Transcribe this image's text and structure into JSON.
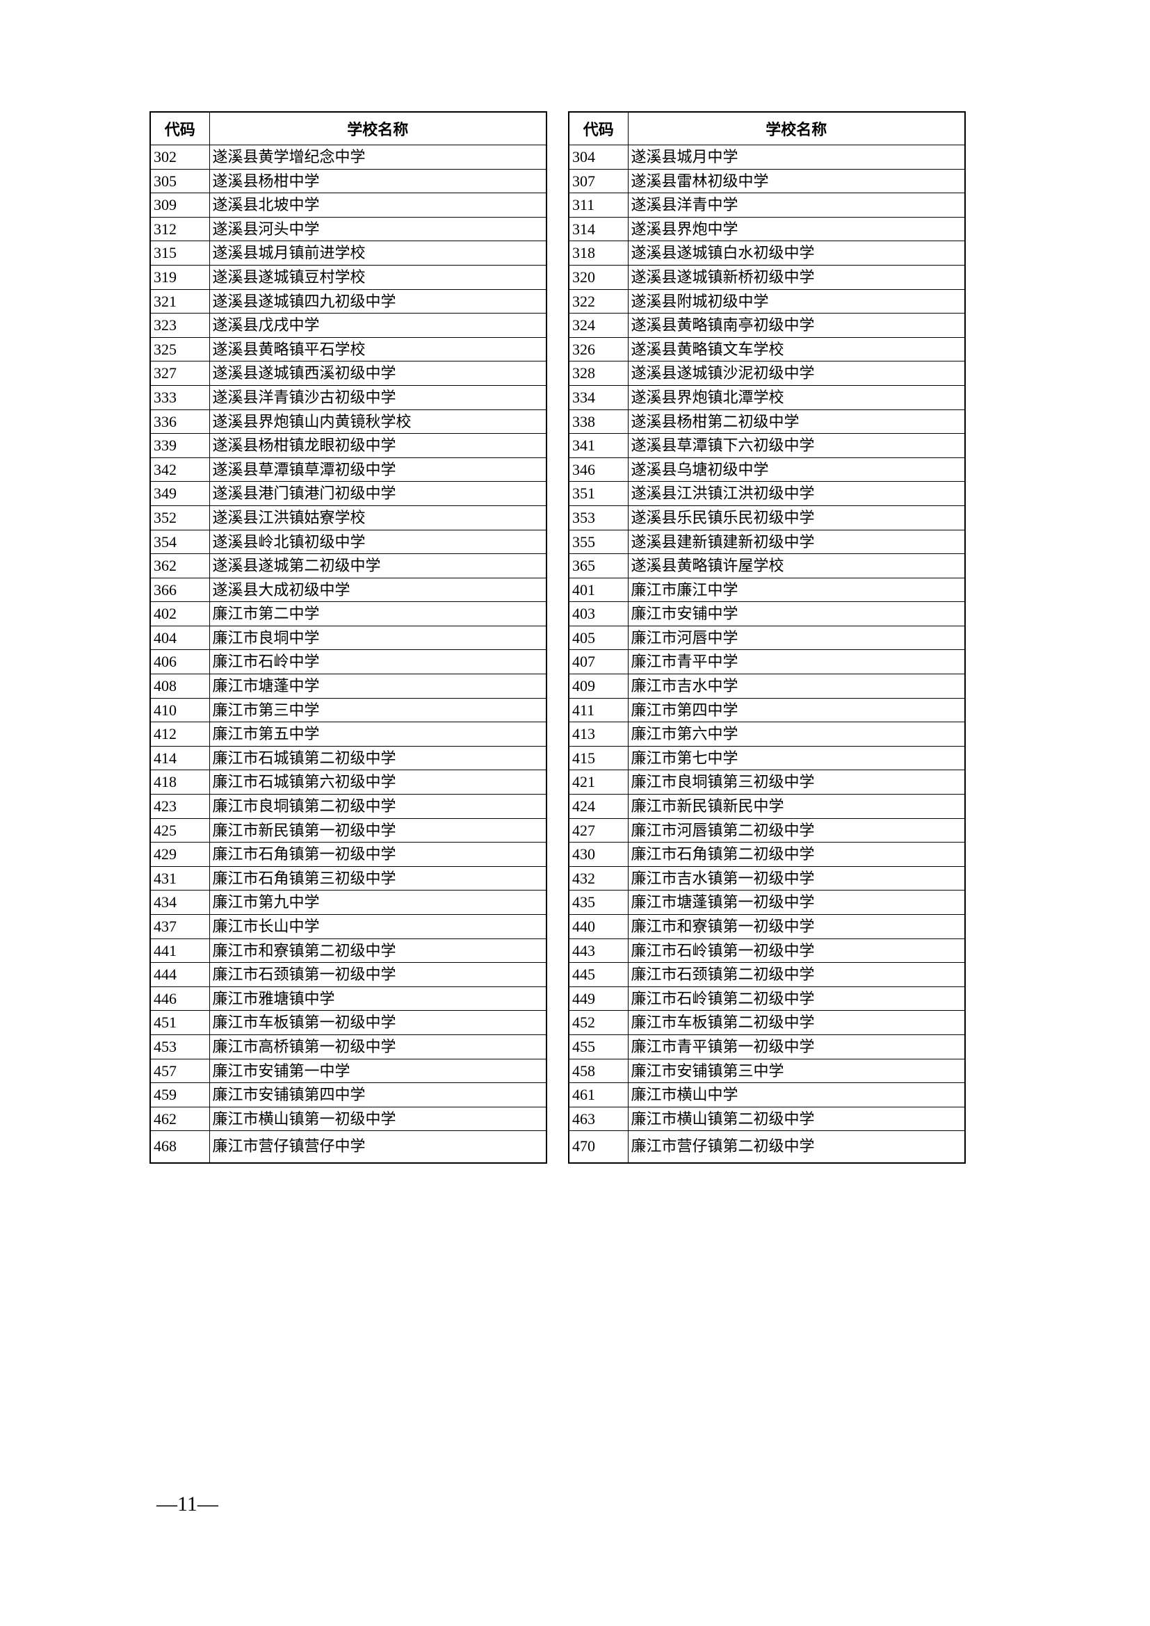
{
  "headers": {
    "code": "代码",
    "name": "学校名称"
  },
  "leftTable": [
    {
      "code": "302",
      "name": "遂溪县黄学增纪念中学"
    },
    {
      "code": "305",
      "name": "遂溪县杨柑中学"
    },
    {
      "code": "309",
      "name": "遂溪县北坡中学"
    },
    {
      "code": "312",
      "name": "遂溪县河头中学"
    },
    {
      "code": "315",
      "name": "遂溪县城月镇前进学校"
    },
    {
      "code": "319",
      "name": "遂溪县遂城镇豆村学校"
    },
    {
      "code": "321",
      "name": "遂溪县遂城镇四九初级中学"
    },
    {
      "code": "323",
      "name": "遂溪县戊戌中学"
    },
    {
      "code": "325",
      "name": "遂溪县黄略镇平石学校"
    },
    {
      "code": "327",
      "name": "遂溪县遂城镇西溪初级中学"
    },
    {
      "code": "333",
      "name": "遂溪县洋青镇沙古初级中学"
    },
    {
      "code": "336",
      "name": "遂溪县界炮镇山内黄镜秋学校"
    },
    {
      "code": "339",
      "name": "遂溪县杨柑镇龙眼初级中学"
    },
    {
      "code": "342",
      "name": "遂溪县草潭镇草潭初级中学"
    },
    {
      "code": "349",
      "name": "遂溪县港门镇港门初级中学"
    },
    {
      "code": "352",
      "name": "遂溪县江洪镇姑寮学校"
    },
    {
      "code": "354",
      "name": "遂溪县岭北镇初级中学"
    },
    {
      "code": "362",
      "name": "遂溪县遂城第二初级中学"
    },
    {
      "code": "366",
      "name": "遂溪县大成初级中学"
    },
    {
      "code": "402",
      "name": "廉江市第二中学"
    },
    {
      "code": "404",
      "name": "廉江市良垌中学"
    },
    {
      "code": "406",
      "name": "廉江市石岭中学"
    },
    {
      "code": "408",
      "name": "廉江市塘蓬中学"
    },
    {
      "code": "410",
      "name": "廉江市第三中学"
    },
    {
      "code": "412",
      "name": "廉江市第五中学"
    },
    {
      "code": "414",
      "name": "廉江市石城镇第二初级中学"
    },
    {
      "code": "418",
      "name": "廉江市石城镇第六初级中学"
    },
    {
      "code": "423",
      "name": "廉江市良垌镇第二初级中学"
    },
    {
      "code": "425",
      "name": "廉江市新民镇第一初级中学"
    },
    {
      "code": "429",
      "name": "廉江市石角镇第一初级中学"
    },
    {
      "code": "431",
      "name": "廉江市石角镇第三初级中学"
    },
    {
      "code": "434",
      "name": "廉江市第九中学"
    },
    {
      "code": "437",
      "name": "廉江市长山中学"
    },
    {
      "code": "441",
      "name": "廉江市和寮镇第二初级中学"
    },
    {
      "code": "444",
      "name": "廉江市石颈镇第一初级中学"
    },
    {
      "code": "446",
      "name": "廉江市雅塘镇中学"
    },
    {
      "code": "451",
      "name": "廉江市车板镇第一初级中学"
    },
    {
      "code": "453",
      "name": "廉江市高桥镇第一初级中学"
    },
    {
      "code": "457",
      "name": "廉江市安铺第一中学"
    },
    {
      "code": "459",
      "name": "廉江市安铺镇第四中学"
    },
    {
      "code": "462",
      "name": "廉江市横山镇第一初级中学"
    },
    {
      "code": "468",
      "name": "廉江市营仔镇营仔中学"
    }
  ],
  "rightTable": [
    {
      "code": "304",
      "name": "遂溪县城月中学"
    },
    {
      "code": "307",
      "name": "遂溪县雷林初级中学"
    },
    {
      "code": "311",
      "name": "遂溪县洋青中学"
    },
    {
      "code": "314",
      "name": "遂溪县界炮中学"
    },
    {
      "code": "318",
      "name": "遂溪县遂城镇白水初级中学"
    },
    {
      "code": "320",
      "name": "遂溪县遂城镇新桥初级中学"
    },
    {
      "code": "322",
      "name": "遂溪县附城初级中学"
    },
    {
      "code": "324",
      "name": "遂溪县黄略镇南亭初级中学"
    },
    {
      "code": "326",
      "name": "遂溪县黄略镇文车学校"
    },
    {
      "code": "328",
      "name": "遂溪县遂城镇沙泥初级中学"
    },
    {
      "code": "334",
      "name": "遂溪县界炮镇北潭学校"
    },
    {
      "code": "338",
      "name": "遂溪县杨柑第二初级中学"
    },
    {
      "code": "341",
      "name": "遂溪县草潭镇下六初级中学"
    },
    {
      "code": "346",
      "name": "遂溪县乌塘初级中学"
    },
    {
      "code": "351",
      "name": "遂溪县江洪镇江洪初级中学"
    },
    {
      "code": "353",
      "name": "遂溪县乐民镇乐民初级中学"
    },
    {
      "code": "355",
      "name": "遂溪县建新镇建新初级中学"
    },
    {
      "code": "365",
      "name": "遂溪县黄略镇许屋学校"
    },
    {
      "code": "401",
      "name": "廉江市廉江中学"
    },
    {
      "code": "403",
      "name": "廉江市安铺中学"
    },
    {
      "code": "405",
      "name": "廉江市河唇中学"
    },
    {
      "code": "407",
      "name": "廉江市青平中学"
    },
    {
      "code": "409",
      "name": "廉江市吉水中学"
    },
    {
      "code": "411",
      "name": "廉江市第四中学"
    },
    {
      "code": "413",
      "name": "廉江市第六中学"
    },
    {
      "code": "415",
      "name": "廉江市第七中学"
    },
    {
      "code": "421",
      "name": "廉江市良垌镇第三初级中学"
    },
    {
      "code": "424",
      "name": "廉江市新民镇新民中学"
    },
    {
      "code": "427",
      "name": "廉江市河唇镇第二初级中学"
    },
    {
      "code": "430",
      "name": "廉江市石角镇第二初级中学"
    },
    {
      "code": "432",
      "name": "廉江市吉水镇第一初级中学"
    },
    {
      "code": "435",
      "name": "廉江市塘蓬镇第一初级中学"
    },
    {
      "code": "440",
      "name": "廉江市和寮镇第一初级中学"
    },
    {
      "code": "443",
      "name": "廉江市石岭镇第一初级中学"
    },
    {
      "code": "445",
      "name": "廉江市石颈镇第二初级中学"
    },
    {
      "code": "449",
      "name": "廉江市石岭镇第二初级中学"
    },
    {
      "code": "452",
      "name": "廉江市车板镇第二初级中学"
    },
    {
      "code": "455",
      "name": "廉江市青平镇第一初级中学"
    },
    {
      "code": "458",
      "name": "廉江市安铺镇第三中学"
    },
    {
      "code": "461",
      "name": "廉江市横山中学"
    },
    {
      "code": "463",
      "name": "廉江市横山镇第二初级中学"
    },
    {
      "code": "470",
      "name": "廉江市营仔镇第二初级中学"
    }
  ],
  "pageNumber": "—11—"
}
